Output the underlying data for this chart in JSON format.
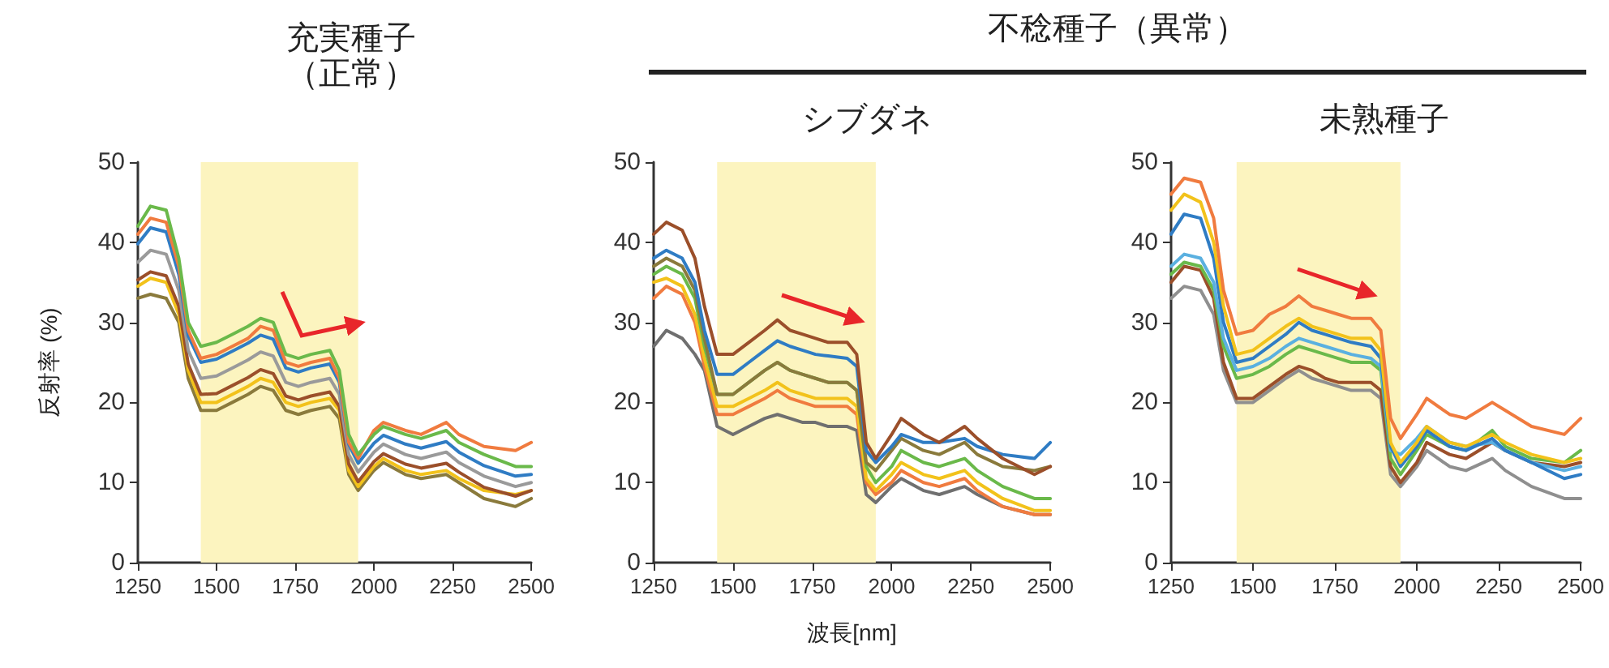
{
  "chart_data": [
    {
      "type": "line",
      "title": "充実種子",
      "subtitle": "（正常）",
      "ylabel": "反射率 (%)",
      "xlim": [
        1250,
        2500
      ],
      "xticks": [
        1250,
        1500,
        1750,
        2000,
        2250,
        2500
      ],
      "ylim": [
        0,
        50
      ],
      "yticks": [
        0,
        10,
        20,
        30,
        40,
        50
      ],
      "bands": [
        {
          "axis": "x",
          "from": 1450,
          "to": 1950,
          "color": "#fcf4bf"
        }
      ],
      "x": [
        1250,
        1290,
        1340,
        1380,
        1410,
        1450,
        1500,
        1550,
        1600,
        1640,
        1680,
        1720,
        1760,
        1800,
        1860,
        1890,
        1920,
        1950,
        2000,
        2030,
        2100,
        2150,
        2230,
        2270,
        2350,
        2450,
        2500
      ],
      "series": [
        {
          "color": "#8a7a3c",
          "values": [
            33,
            33.5,
            33,
            30,
            23,
            19,
            19,
            20,
            21,
            22,
            21.5,
            19,
            18.5,
            19,
            19.5,
            18,
            11,
            9,
            11.5,
            12.5,
            11,
            10.5,
            11,
            10,
            8,
            7,
            8
          ]
        },
        {
          "color": "#f2c21b",
          "values": [
            34.5,
            35.5,
            35,
            31,
            24,
            20,
            20,
            21,
            22,
            23,
            22.5,
            20,
            19.5,
            20,
            20.5,
            19,
            11.5,
            9.5,
            12,
            13,
            11.5,
            11,
            11.5,
            10.5,
            9,
            8.5,
            9
          ]
        },
        {
          "color": "#9b4f2a",
          "values": [
            35.3,
            36.3,
            35.8,
            32,
            24.8,
            21,
            21.1,
            22.1,
            23.1,
            24.1,
            23.6,
            20.8,
            20.3,
            20.8,
            21.3,
            19.5,
            12.3,
            10.1,
            12.6,
            13.6,
            12.3,
            11.8,
            12.4,
            11.3,
            9.4,
            8.3,
            9
          ]
        },
        {
          "color": "#9a9a9a",
          "values": [
            37.5,
            39,
            38.5,
            34,
            26.5,
            23,
            23.3,
            24.3,
            25.3,
            26.3,
            25.8,
            22.5,
            22,
            22.5,
            23,
            21,
            13.5,
            11.3,
            13.8,
            14.8,
            13.5,
            13,
            13.8,
            12.5,
            10.8,
            9.5,
            10
          ]
        },
        {
          "color": "#2f7cc4",
          "values": [
            39.8,
            41.8,
            41.3,
            36,
            28.3,
            25,
            25.4,
            26.4,
            27.4,
            28.4,
            27.9,
            24.3,
            23.8,
            24.3,
            24.8,
            22.5,
            14.8,
            12.4,
            14.9,
            15.9,
            14.8,
            14.3,
            15.1,
            13.8,
            12.1,
            10.8,
            11
          ]
        },
        {
          "color": "#f07b3f",
          "values": [
            41,
            43,
            42.5,
            37,
            29,
            25.5,
            26,
            27,
            28,
            29.5,
            29,
            25,
            24.5,
            25,
            25.5,
            23,
            15,
            13,
            16.5,
            17.5,
            16.5,
            16,
            17.5,
            16,
            14.5,
            14,
            15
          ]
        },
        {
          "color": "#6ab94a",
          "values": [
            42,
            44.5,
            44,
            38,
            30,
            27,
            27.5,
            28.5,
            29.5,
            30.5,
            30,
            26,
            25.5,
            26,
            26.5,
            24,
            16,
            13.5,
            16,
            17,
            16,
            15.5,
            16.5,
            15,
            13.5,
            12,
            12
          ]
        }
      ]
    },
    {
      "type": "line",
      "title": "シブダネ",
      "xlabel": "波長[nm]",
      "annotations": [
        "不稔種子（異常）"
      ],
      "xlim": [
        1250,
        2500
      ],
      "xticks": [
        1250,
        1500,
        1750,
        2000,
        2250,
        2500
      ],
      "ylim": [
        0,
        50
      ],
      "yticks": [
        0,
        10,
        20,
        30,
        40,
        50
      ],
      "bands": [
        {
          "axis": "x",
          "from": 1450,
          "to": 1950,
          "color": "#fcf4bf"
        }
      ],
      "x": [
        1250,
        1290,
        1340,
        1380,
        1410,
        1450,
        1500,
        1550,
        1600,
        1640,
        1680,
        1720,
        1760,
        1800,
        1860,
        1890,
        1920,
        1950,
        2000,
        2030,
        2100,
        2150,
        2230,
        2270,
        2350,
        2450,
        2500
      ],
      "series": [
        {
          "color": "#6f6f6f",
          "values": [
            27,
            29,
            28,
            26,
            24,
            17,
            16,
            17,
            18,
            18.5,
            18,
            17.5,
            17.5,
            17,
            17,
            16.5,
            8.5,
            7.5,
            9.5,
            10.5,
            9,
            8.5,
            9.5,
            8.5,
            7,
            6,
            6
          ]
        },
        {
          "color": "#f07b3f",
          "values": [
            33,
            34.5,
            33.5,
            30,
            24.5,
            18.5,
            18.5,
            19.5,
            20.5,
            21.5,
            20.5,
            20,
            19.5,
            19.5,
            19.5,
            18.5,
            10,
            8.5,
            10,
            11.5,
            10,
            9.5,
            10.5,
            9,
            7,
            6,
            6
          ]
        },
        {
          "color": "#f2c21b",
          "values": [
            35,
            35.5,
            34.5,
            31,
            25.5,
            19.5,
            19.5,
            20.5,
            21.5,
            22.5,
            21.5,
            21,
            20.5,
            20.5,
            20.5,
            19.5,
            10.5,
            9,
            11,
            12.5,
            11,
            10.5,
            11.5,
            10,
            8,
            6.5,
            6.5
          ]
        },
        {
          "color": "#6ab94a",
          "values": [
            36,
            37,
            36,
            33,
            27,
            21,
            21,
            22.5,
            24,
            25,
            24,
            23.5,
            23,
            22.5,
            22.5,
            21.5,
            12,
            10,
            12,
            14,
            12.5,
            12,
            13,
            11.5,
            9.5,
            8,
            8
          ]
        },
        {
          "color": "#8a7a3c",
          "values": [
            37,
            38,
            37,
            34,
            28,
            21,
            21,
            22.5,
            24,
            25,
            24,
            23.5,
            23,
            22.5,
            22.5,
            21.5,
            12.5,
            11.5,
            14,
            15.5,
            14,
            13.5,
            15,
            13.5,
            12,
            11.5,
            12
          ]
        },
        {
          "color": "#2f7cc4",
          "values": [
            38,
            39,
            38,
            35,
            29,
            23.5,
            23.5,
            25,
            26.5,
            27.7,
            27,
            26.5,
            26,
            25.8,
            25.5,
            24.5,
            14,
            12.5,
            14.5,
            16,
            15,
            15,
            15.5,
            14.5,
            13.5,
            13,
            15
          ]
        },
        {
          "color": "#9b4f2a",
          "values": [
            41,
            42.5,
            41.5,
            38,
            32,
            26,
            26,
            27.5,
            29,
            30.3,
            29,
            28.5,
            28,
            27.5,
            27.5,
            26,
            15,
            13,
            16,
            18,
            16,
            15,
            17,
            15.5,
            13,
            11,
            12
          ]
        }
      ]
    },
    {
      "type": "line",
      "title": "未熟種子",
      "xlim": [
        1250,
        2500
      ],
      "xticks": [
        1250,
        1500,
        1750,
        2000,
        2250,
        2500
      ],
      "ylim": [
        0,
        50
      ],
      "yticks": [
        0,
        10,
        20,
        30,
        40,
        50
      ],
      "bands": [
        {
          "axis": "x",
          "from": 1450,
          "to": 1950,
          "color": "#fcf4bf"
        }
      ],
      "x": [
        1250,
        1290,
        1340,
        1380,
        1410,
        1450,
        1500,
        1550,
        1600,
        1640,
        1680,
        1720,
        1760,
        1800,
        1860,
        1890,
        1920,
        1950,
        2000,
        2030,
        2100,
        2150,
        2230,
        2270,
        2350,
        2450,
        2500
      ],
      "series": [
        {
          "color": "#8f8f8f",
          "values": [
            33,
            34.5,
            34,
            31,
            24,
            20,
            20,
            21.5,
            23,
            24,
            23,
            22.5,
            22,
            21.5,
            21.5,
            20.5,
            11,
            9.5,
            12,
            14,
            12,
            11.5,
            13,
            11.5,
            9.5,
            8,
            8
          ]
        },
        {
          "color": "#9b4f2a",
          "values": [
            35,
            37,
            36.5,
            33,
            25,
            20.5,
            20.5,
            22,
            23.5,
            24.5,
            24,
            23,
            22.5,
            22.5,
            22.5,
            21.5,
            12,
            10,
            12.5,
            15,
            13.5,
            13,
            15,
            14,
            12.5,
            12,
            12.5
          ]
        },
        {
          "color": "#6ab94a",
          "values": [
            36,
            37.5,
            37,
            34,
            27,
            23,
            23.5,
            24.5,
            26,
            27,
            26.5,
            26,
            25.5,
            25,
            25,
            24,
            13,
            11,
            14,
            16,
            14.5,
            14,
            16.5,
            14.5,
            13,
            12.5,
            14
          ]
        },
        {
          "color": "#5ab0e0",
          "values": [
            37,
            38.5,
            38,
            35,
            28,
            24,
            24.5,
            25.5,
            27,
            28,
            27.5,
            27,
            26.5,
            26,
            25.5,
            24.5,
            14,
            13.5,
            15.5,
            17,
            15,
            14.5,
            15,
            14,
            12.5,
            11.5,
            12
          ]
        },
        {
          "color": "#2f7cc4",
          "values": [
            41,
            43.5,
            43,
            38,
            30,
            25,
            25.5,
            27,
            28.5,
            30,
            29,
            28.5,
            28,
            27.5,
            27,
            25.5,
            14.5,
            12,
            14.5,
            16.5,
            14.5,
            14,
            15.5,
            14,
            12.5,
            10.5,
            11
          ]
        },
        {
          "color": "#f2c21b",
          "values": [
            44,
            46,
            45,
            40,
            32,
            26,
            26.5,
            28,
            29.5,
            30.5,
            29.5,
            29,
            28.5,
            28,
            28,
            26.5,
            15,
            12.5,
            15,
            17,
            15,
            14.5,
            16,
            15,
            13.5,
            12.5,
            13
          ]
        },
        {
          "color": "#f07b3f",
          "values": [
            46,
            48,
            47.5,
            43,
            34,
            28.5,
            29,
            31,
            32,
            33.3,
            32,
            31.5,
            31,
            30.5,
            30.5,
            29,
            18,
            15.5,
            18.5,
            20.5,
            18.5,
            18,
            20,
            19,
            17,
            16,
            18
          ]
        }
      ]
    }
  ]
}
